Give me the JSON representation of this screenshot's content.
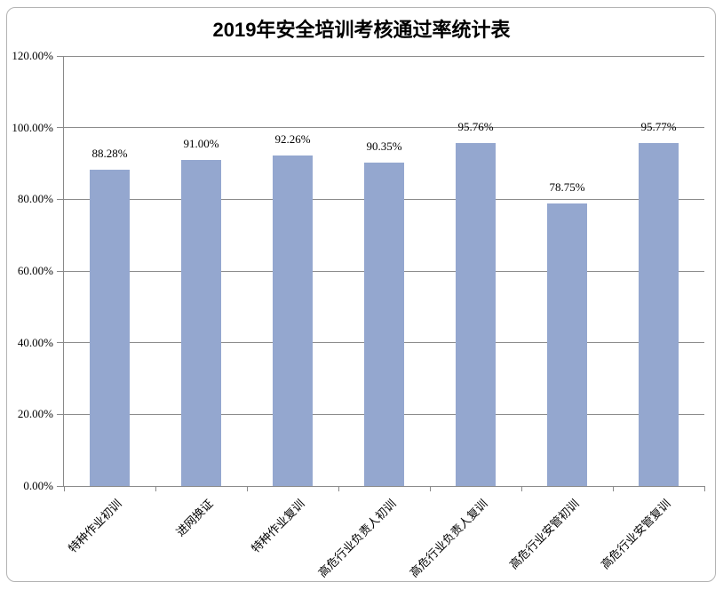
{
  "chart_data": {
    "type": "bar",
    "title": "2019年安全培训考核通过率统计表",
    "categories": [
      "特种作业初训",
      "进网换证",
      "特种作业复训",
      "高危行业负责人初训",
      "高危行业负责人复训",
      "高危行业安管初训",
      "高危行业安管复训"
    ],
    "values": [
      88.28,
      91.0,
      92.26,
      90.35,
      95.76,
      78.75,
      95.77
    ],
    "data_labels": [
      "88.28%",
      "91.00%",
      "92.26%",
      "90.35%",
      "95.76%",
      "78.75%",
      "95.77%"
    ],
    "ytick_labels": [
      "0.00%",
      "20.00%",
      "40.00%",
      "60.00%",
      "80.00%",
      "100.00%",
      "120.00%"
    ],
    "ytick_values": [
      0,
      20,
      40,
      60,
      80,
      100,
      120
    ],
    "ylim": [
      0,
      120
    ],
    "xlabel": "",
    "ylabel": "",
    "grid": true,
    "legend_position": "none",
    "colors": {
      "bar": "#94a7cf",
      "gridline": "#8c8c8c",
      "axis": "#898989",
      "frame_border": "#b3b3b3",
      "text": "#000000",
      "background": "#ffffff"
    }
  }
}
